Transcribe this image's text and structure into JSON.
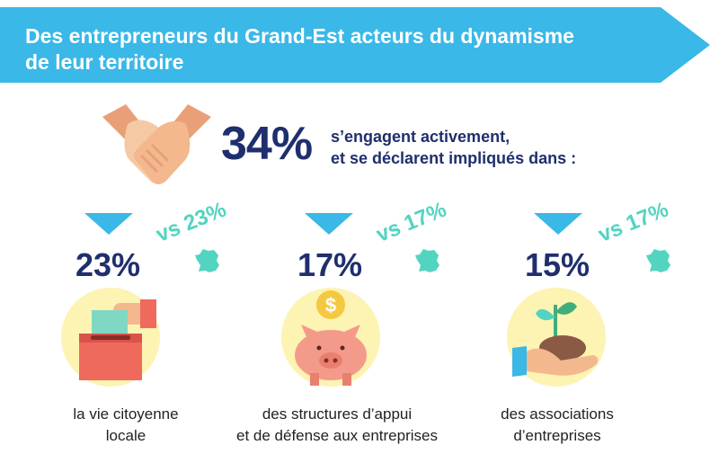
{
  "header": {
    "title": "Des entrepreneurs du Grand-Est acteurs du dynamisme\nde leur territoire"
  },
  "summary": {
    "percentage": "34%",
    "text_line1": "s’engagent activement,",
    "text_line2": "et se déclarent impliqués dans :"
  },
  "items": [
    {
      "percentage": "23%",
      "comparison": "vs 23%",
      "label": "la vie citoyenne\nlocale",
      "icon": "ballot-box-icon"
    },
    {
      "percentage": "17%",
      "comparison": "vs 17%",
      "label": "des structures d’appui\net de défense aux entreprises",
      "icon": "piggy-bank-icon"
    },
    {
      "percentage": "15%",
      "comparison": "vs 17%",
      "label": "des associations\nd’entreprises",
      "icon": "plant-in-hand-icon"
    }
  ],
  "colors": {
    "banner": "#3ab8e8",
    "navy": "#1f2f6d",
    "teal": "#52d4c0",
    "circle": "#fdf3b3"
  }
}
